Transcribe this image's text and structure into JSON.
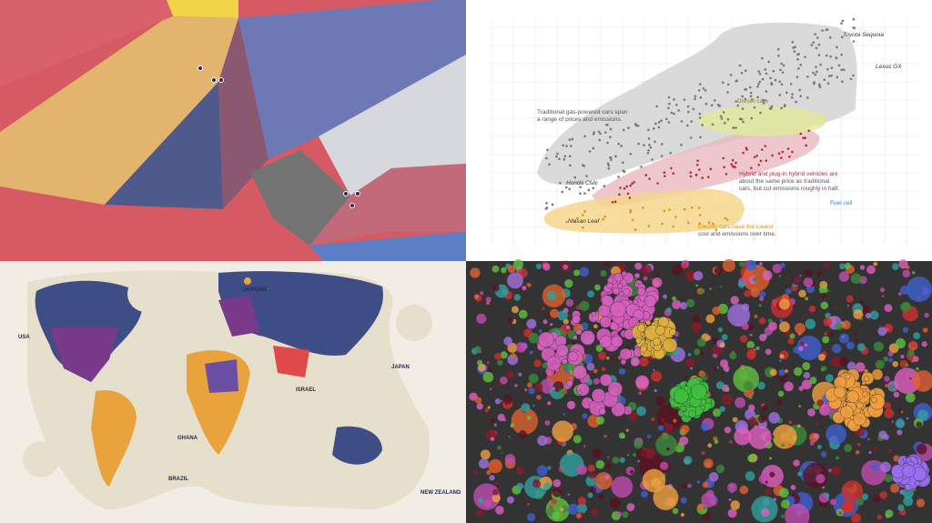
{
  "top_right": {
    "labels": [
      "Toyota Sequoia",
      "Lexus GX",
      "Traditional gas-powered cars span",
      "a range of prices and emissions.",
      "Diesel cars",
      "Honda Civic",
      "Hybrid and plug-in hybrid vehicles are",
      "about the same price as traditional",
      "cars, but cut emissions roughly in half.",
      "Fuel cell",
      "Nissan Leaf",
      "Electric cars have the lowest",
      "cost and emissions over time."
    ]
  },
  "bottom_left": {
    "labels": [
      "UKRAINE",
      "USA",
      "JAPAN",
      "ISRAEL",
      "GHANA",
      "BRAZIL",
      "NEW ZEALAND"
    ]
  }
}
